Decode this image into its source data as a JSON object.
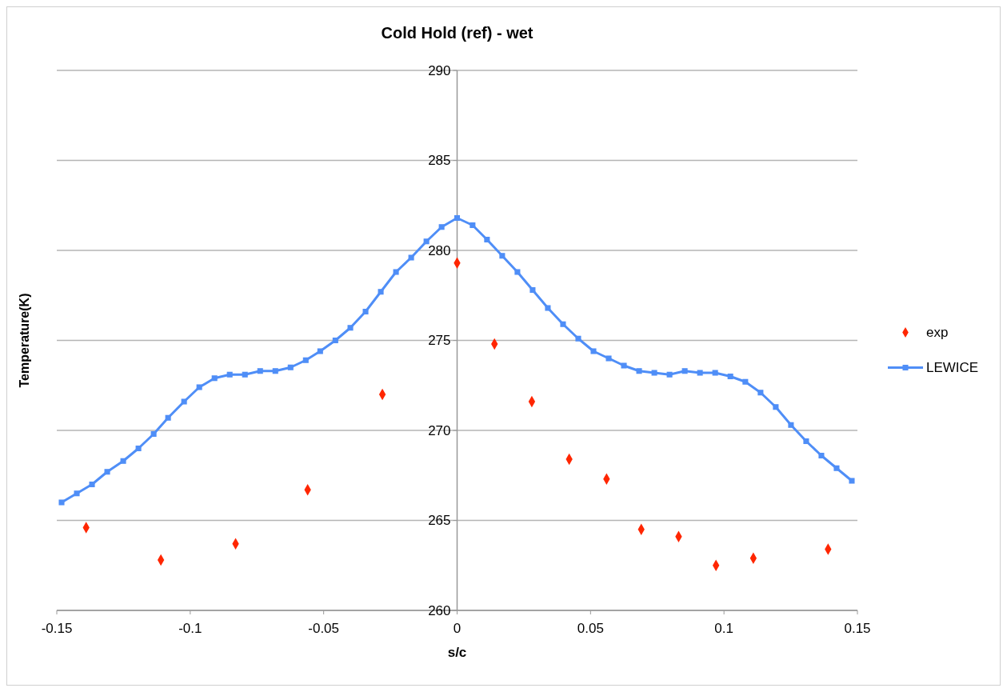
{
  "chart_data": {
    "type": "line",
    "title": "Cold Hold (ref) - wet",
    "xlabel": "s/c",
    "ylabel": "Temperature(K)",
    "xlim": [
      -0.15,
      0.15
    ],
    "xticks": [
      -0.15,
      -0.1,
      -0.05,
      0,
      0.05,
      0.1,
      0.15
    ],
    "ylim": [
      260,
      290
    ],
    "yticks": [
      260,
      265,
      270,
      275,
      280,
      285,
      290
    ],
    "grid": "y",
    "legend": "right",
    "series": [
      {
        "name": "exp",
        "type": "scatter",
        "marker": "diamond",
        "color": "#ff2600",
        "x": [
          -0.139,
          -0.111,
          -0.083,
          -0.056,
          -0.028,
          0,
          0.014,
          0.028,
          0.042,
          0.056,
          0.069,
          0.083,
          0.097,
          0.111,
          0.139
        ],
        "values": [
          264.6,
          262.8,
          263.7,
          266.7,
          272.0,
          279.3,
          274.8,
          271.6,
          268.4,
          267.3,
          264.5,
          264.1,
          262.5,
          262.9,
          263.4
        ]
      },
      {
        "name": "LEWICE",
        "marker": "square",
        "color": "#4f8ef7",
        "x": [
          -0.1482,
          -0.1425,
          -0.1368,
          -0.1311,
          -0.1251,
          -0.1194,
          -0.1137,
          -0.1083,
          -0.1023,
          -0.0966,
          -0.0909,
          -0.0852,
          -0.0795,
          -0.0738,
          -0.0681,
          -0.0624,
          -0.0567,
          -0.0513,
          -0.0456,
          -0.04,
          -0.0343,
          -0.0286,
          -0.0229,
          -0.0172,
          -0.0115,
          -0.0058,
          0,
          0.0058,
          0.0112,
          0.0169,
          0.0226,
          0.0283,
          0.034,
          0.0397,
          0.0454,
          0.0511,
          0.0568,
          0.0625,
          0.0682,
          0.0739,
          0.0796,
          0.0853,
          0.091,
          0.0967,
          0.1024,
          0.108,
          0.1137,
          0.1194,
          0.1251,
          0.1308,
          0.1365,
          0.1422,
          0.1479
        ],
        "values": [
          266.0,
          266.5,
          267.0,
          267.7,
          268.3,
          269.0,
          269.8,
          270.7,
          271.6,
          272.4,
          272.9,
          273.1,
          273.1,
          273.3,
          273.3,
          273.5,
          273.9,
          274.4,
          275.0,
          275.7,
          276.6,
          277.7,
          278.8,
          279.6,
          280.5,
          281.3,
          281.8,
          281.4,
          280.6,
          279.7,
          278.8,
          277.8,
          276.8,
          275.9,
          275.1,
          274.4,
          274.0,
          273.6,
          273.3,
          273.2,
          273.1,
          273.3,
          273.2,
          273.2,
          273.0,
          272.7,
          272.1,
          271.3,
          270.3,
          269.4,
          268.6,
          267.9,
          267.2
        ]
      }
    ]
  }
}
